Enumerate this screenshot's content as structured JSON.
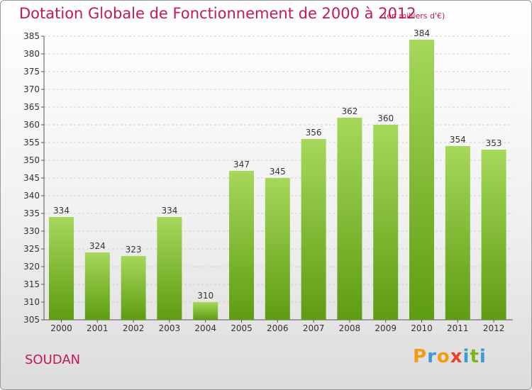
{
  "header": {
    "title": "Dotation Globale de Fonctionnement de 2000 à 2012",
    "unit": "(en milliers d'€)"
  },
  "footer": {
    "commune": "SOUDAN",
    "logo": [
      "P",
      "r",
      "o",
      "x",
      "i",
      "t",
      "i"
    ]
  },
  "colors": {
    "title": "#c2185b",
    "bar_light": "#a6d85b",
    "bar_dark": "#5e9c12",
    "logo": [
      "#f39c12",
      "#3a9bd8",
      "#f39c12",
      "#e8442c",
      "#3a9bd8",
      "#7cb518",
      "#3a9bd8"
    ]
  },
  "chart_data": {
    "type": "bar",
    "categories": [
      "2000",
      "2001",
      "2002",
      "2003",
      "2004",
      "2005",
      "2006",
      "2007",
      "2008",
      "2009",
      "2010",
      "2011",
      "2012"
    ],
    "values": [
      334,
      324,
      323,
      334,
      310,
      347,
      345,
      356,
      362,
      360,
      384,
      354,
      353
    ],
    "ylim": [
      305,
      385
    ],
    "yticks": [
      305,
      310,
      315,
      320,
      325,
      330,
      335,
      340,
      345,
      350,
      355,
      360,
      365,
      370,
      375,
      380,
      385
    ],
    "grid": true,
    "data_labels": true
  }
}
